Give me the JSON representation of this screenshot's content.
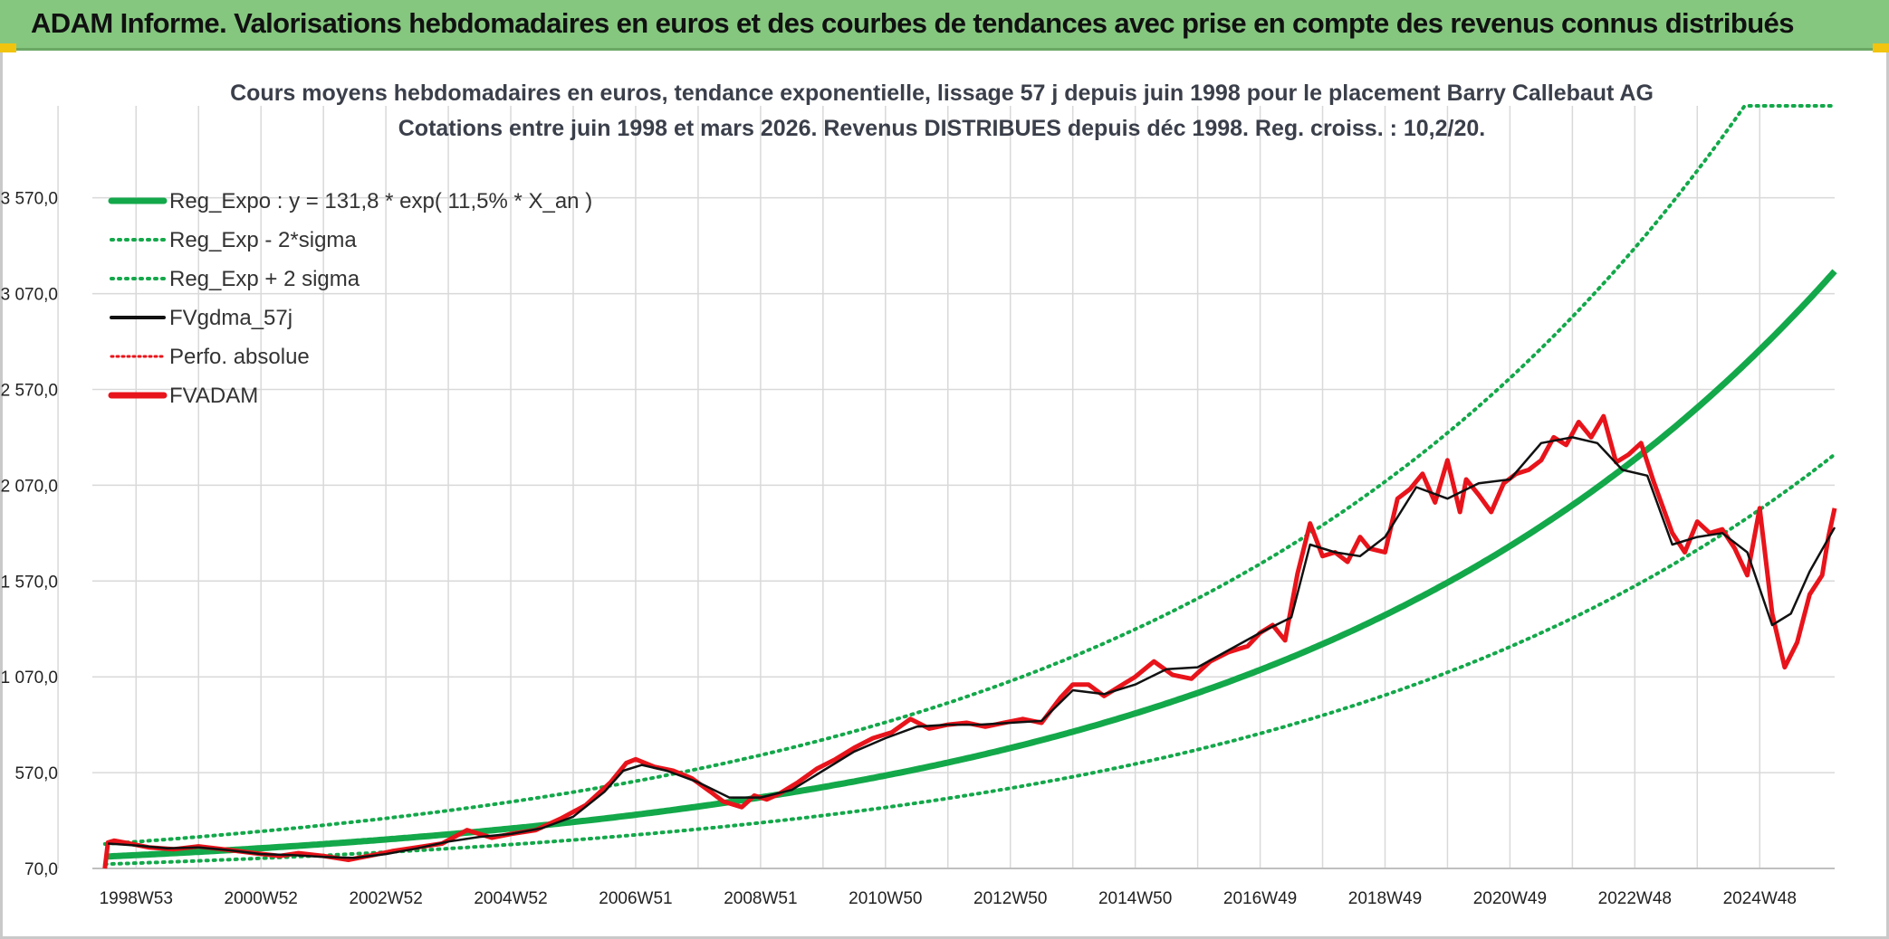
{
  "banner": {
    "title": "ADAM Informe. Valorisations hebdomadaires en euros et des courbes de tendances avec prise en compte des revenus connus distribués"
  },
  "colors": {
    "green": "#13a84a",
    "black": "#111111",
    "red": "#e8141b",
    "grid": "#d9d9d9",
    "banner": "#85c77f"
  },
  "chart_data": {
    "type": "line",
    "title": "Cours moyens hebdomadaires en euros, tendance exponentielle, lissage 57 j depuis juin 1998 pour le placement Barry Callebaut AG",
    "subtitle": "Cotations entre juin 1998 et mars 2026. Revenus DISTRIBUES depuis déc 1998. Reg. croiss. : 10,2/20.",
    "xlabel": "",
    "ylabel": "",
    "x_range": [
      1998.3,
      2026.2
    ],
    "ylim": [
      70,
      4050
    ],
    "y_ticks": [
      70,
      570,
      1070,
      1570,
      2070,
      2570,
      3070,
      3570
    ],
    "y_tick_labels": [
      "70,0",
      "570,0",
      "1 070,0",
      "1 570,0",
      "2 070,0",
      "2 570,0",
      "3 070,0",
      "3 570,0"
    ],
    "x_ticks": [
      1999.0,
      2001.0,
      2003.0,
      2005.0,
      2007.0,
      2009.0,
      2011.0,
      2013.0,
      2015.0,
      2017.0,
      2019.0,
      2021.0,
      2023.0,
      2025.0
    ],
    "x_tick_labels": [
      "1998W53",
      "2000W52",
      "2002W52",
      "2004W52",
      "2006W51",
      "2008W51",
      "2010W50",
      "2012W50",
      "2014W50",
      "2016W49",
      "2018W49",
      "2020W49",
      "2022W48",
      "2024W48"
    ],
    "legend": [
      {
        "label": "Reg_Expo : y = 131,8 * exp( 11,5% *  X_an )",
        "style": "thick",
        "color": "#13a84a"
      },
      {
        "label": "Reg_Exp - 2*sigma",
        "style": "dotted",
        "color": "#13a84a"
      },
      {
        "label": "Reg_Exp + 2 sigma",
        "style": "dotted",
        "color": "#13a84a"
      },
      {
        "label": "FVgdma_57j",
        "style": "solid",
        "color": "#111111"
      },
      {
        "label": "Perfo. absolue",
        "style": "dotted-thin",
        "color": "#e8141b"
      },
      {
        "label": "FVADAM",
        "style": "thick",
        "color": "#e8141b"
      }
    ],
    "regression": {
      "a": 131.8,
      "b": 0.115,
      "x0": 1998.5,
      "lower_factor": 0.7,
      "upper_factor": 1.5
    },
    "series": [
      {
        "name": "FVADAM",
        "x": [
          1998.5,
          1998.55,
          1998.65,
          1998.9,
          1999.2,
          1999.6,
          2000.0,
          2000.4,
          2000.9,
          2001.3,
          2001.6,
          2002.0,
          2002.4,
          2002.8,
          2003.1,
          2003.5,
          2003.9,
          2004.3,
          2004.7,
          2005.0,
          2005.4,
          2005.8,
          2006.2,
          2006.6,
          2006.85,
          2007.0,
          2007.3,
          2007.6,
          2007.9,
          2008.2,
          2008.4,
          2008.7,
          2008.9,
          2009.1,
          2009.3,
          2009.6,
          2009.9,
          2010.2,
          2010.5,
          2010.8,
          2011.1,
          2011.4,
          2011.7,
          2012.0,
          2012.3,
          2012.6,
          2012.9,
          2013.2,
          2013.5,
          2013.8,
          2014.0,
          2014.25,
          2014.5,
          2014.75,
          2015.0,
          2015.3,
          2015.6,
          2015.9,
          2016.2,
          2016.5,
          2016.8,
          2017.0,
          2017.2,
          2017.4,
          2017.6,
          2017.8,
          2018.0,
          2018.2,
          2018.4,
          2018.6,
          2018.75,
          2019.0,
          2019.2,
          2019.4,
          2019.6,
          2019.8,
          2020.0,
          2020.2,
          2020.3,
          2020.5,
          2020.7,
          2020.9,
          2021.1,
          2021.3,
          2021.5,
          2021.7,
          2021.9,
          2022.1,
          2022.3,
          2022.5,
          2022.7,
          2022.9,
          2023.1,
          2023.3,
          2023.6,
          2023.8,
          2024.0,
          2024.2,
          2024.4,
          2024.6,
          2024.8,
          2025.0,
          2025.2,
          2025.4,
          2025.6,
          2025.8,
          2026.0,
          2026.1,
          2026.2
        ],
        "values": [
          70,
          205,
          215,
          200,
          180,
          170,
          185,
          170,
          150,
          135,
          150,
          135,
          115,
          140,
          160,
          180,
          200,
          270,
          230,
          250,
          270,
          330,
          400,
          520,
          620,
          640,
          600,
          580,
          540,
          470,
          420,
          390,
          450,
          430,
          460,
          520,
          590,
          640,
          700,
          750,
          780,
          850,
          800,
          820,
          830,
          810,
          830,
          850,
          830,
          960,
          1030,
          1030,
          970,
          1020,
          1070,
          1150,
          1080,
          1060,
          1150,
          1200,
          1230,
          1300,
          1340,
          1260,
          1610,
          1870,
          1700,
          1720,
          1670,
          1800,
          1740,
          1720,
          2000,
          2050,
          2130,
          1980,
          2200,
          1930,
          2100,
          2020,
          1930,
          2080,
          2130,
          2150,
          2200,
          2320,
          2280,
          2400,
          2320,
          2430,
          2190,
          2230,
          2290,
          2090,
          1820,
          1720,
          1880,
          1820,
          1840,
          1740,
          1600,
          1950,
          1400,
          1120,
          1250,
          1500,
          1600,
          1800,
          1950
        ]
      },
      {
        "name": "FVgdma_57j",
        "x": [
          1998.55,
          1999.0,
          1999.5,
          2000.0,
          2000.5,
          2001.0,
          2001.5,
          2002.0,
          2002.5,
          2003.0,
          2003.5,
          2004.0,
          2004.5,
          2005.0,
          2005.5,
          2006.0,
          2006.5,
          2006.8,
          2007.1,
          2007.5,
          2008.0,
          2008.5,
          2009.0,
          2009.5,
          2010.0,
          2010.5,
          2011.0,
          2011.5,
          2012.0,
          2012.5,
          2013.0,
          2013.5,
          2014.0,
          2014.5,
          2015.0,
          2015.5,
          2016.0,
          2016.5,
          2017.0,
          2017.5,
          2017.8,
          2018.2,
          2018.6,
          2019.0,
          2019.5,
          2020.0,
          2020.5,
          2021.0,
          2021.5,
          2022.0,
          2022.4,
          2022.8,
          2023.2,
          2023.6,
          2024.0,
          2024.4,
          2024.8,
          2025.2,
          2025.5,
          2025.8,
          2026.2
        ],
        "values": [
          200,
          190,
          175,
          180,
          165,
          145,
          140,
          130,
          125,
          145,
          175,
          210,
          235,
          250,
          280,
          340,
          470,
          580,
          610,
          580,
          520,
          440,
          440,
          480,
          580,
          680,
          750,
          810,
          820,
          820,
          830,
          840,
          1000,
          980,
          1030,
          1110,
          1120,
          1210,
          1300,
          1380,
          1760,
          1720,
          1700,
          1800,
          2060,
          2000,
          2080,
          2100,
          2290,
          2320,
          2290,
          2150,
          2120,
          1760,
          1800,
          1820,
          1720,
          1340,
          1400,
          1620,
          1850
        ]
      }
    ]
  }
}
